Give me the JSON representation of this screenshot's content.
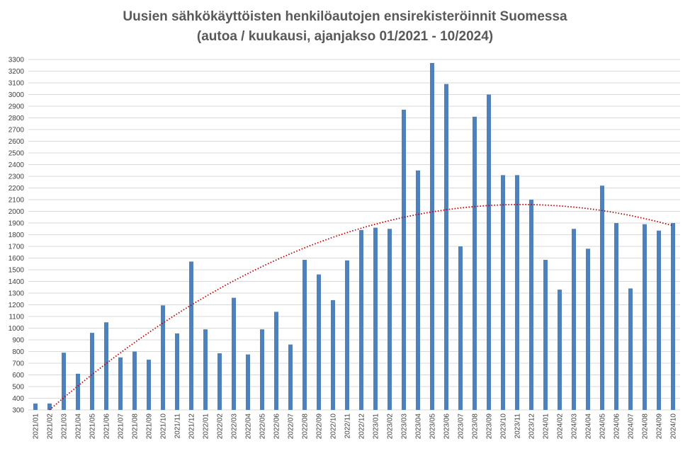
{
  "chart_data": {
    "type": "bar",
    "title": "Uusien sähkökäyttöisten henkilöautojen ensirekisteröinnit Suomessa",
    "subtitle": "(autoa  /  kuukausi, ajanjakso 01/2021  -  10/2024)",
    "xlabel": "",
    "ylabel": "",
    "ylim": [
      300,
      3300
    ],
    "ytick_step": 100,
    "grid": true,
    "legend": "none",
    "bar_color": "#4f81bd",
    "trendline_color": "#c00000",
    "trendline": {
      "type": "polynomial",
      "order": 2,
      "style": "dotted"
    },
    "categories": [
      "2021/01",
      "2021/02",
      "2021/03",
      "2021/04",
      "2021/05",
      "2021/06",
      "2021/07",
      "2021/08",
      "2021/09",
      "2021/10",
      "2021/11",
      "2021/12",
      "2022/01",
      "2022/02",
      "2022/03",
      "2022/04",
      "2022/05",
      "2022/06",
      "2022/07",
      "2022/08",
      "2022/09",
      "2022/10",
      "2022/11",
      "2022/12",
      "2023/01",
      "2023/02",
      "2023/03",
      "2023/04",
      "2023/05",
      "2023/06",
      "2023/07",
      "2023/08",
      "2023/09",
      "2023/10",
      "2023/11",
      "2023/12",
      "2024/01",
      "2024/02",
      "2024/03",
      "2024/04",
      "2024/05",
      "2024/06",
      "2024/07",
      "2024/08",
      "2024/09",
      "2024/10"
    ],
    "values": [
      355,
      355,
      790,
      610,
      960,
      1050,
      750,
      800,
      730,
      1195,
      955,
      1570,
      990,
      785,
      1260,
      775,
      990,
      1140,
      860,
      1585,
      1460,
      1240,
      1580,
      1840,
      1860,
      1850,
      2870,
      2350,
      3270,
      3090,
      1700,
      2810,
      3000,
      2310,
      2310,
      2100,
      1585,
      1330,
      1850,
      1680,
      2220,
      1900,
      1340,
      1890,
      1835,
      1900
    ]
  }
}
